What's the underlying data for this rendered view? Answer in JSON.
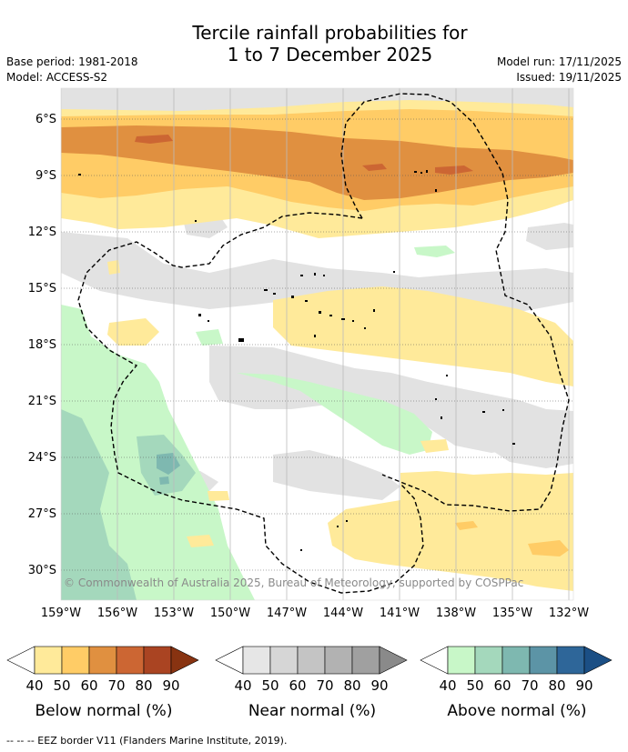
{
  "title": {
    "line1": "Tercile rainfall probabilities for",
    "line2": "1 to 7 December 2025"
  },
  "meta": {
    "base_period": "Base period: 1981-2018",
    "model": "Model: ACCESS-S2",
    "model_run": "Model run: 17/11/2025",
    "issued": "Issued: 19/11/2025"
  },
  "axes": {
    "lat_labels": [
      "6°S",
      "9°S",
      "12°S",
      "15°S",
      "18°S",
      "21°S",
      "24°S",
      "27°S",
      "30°S"
    ],
    "lon_labels": [
      "159°W",
      "156°W",
      "153°W",
      "150°W",
      "147°W",
      "144°W",
      "141°W",
      "138°W",
      "135°W",
      "132°W"
    ]
  },
  "copyright": "© Commonwealth of Australia 2025, Bureau of Meteorology, supported by COSPPac",
  "legend": {
    "below": {
      "title": "Below normal (%)",
      "ticks": [
        "40",
        "50",
        "60",
        "70",
        "80",
        "90"
      ],
      "colors": [
        "#ffffff",
        "#ffea9a",
        "#ffcc66",
        "#e09040",
        "#cc6633",
        "#aa4422",
        "#883311"
      ]
    },
    "near": {
      "title": "Near normal (%)",
      "ticks": [
        "40",
        "50",
        "60",
        "70",
        "80",
        "90"
      ],
      "colors": [
        "#ffffff",
        "#e6e6e6",
        "#d6d6d6",
        "#c4c4c4",
        "#b2b2b2",
        "#a0a0a0",
        "#8a8a8a"
      ]
    },
    "above": {
      "title": "Above normal (%)",
      "ticks": [
        "40",
        "50",
        "60",
        "70",
        "80",
        "90"
      ],
      "colors": [
        "#ffffff",
        "#c8f7c8",
        "#a4d8bc",
        "#7eb8b0",
        "#5c94a6",
        "#2e6699",
        "#1b4f85"
      ]
    }
  },
  "footer": "--  --  -- EEZ border V11 (Flanders Marine Institute, 2019)."
}
